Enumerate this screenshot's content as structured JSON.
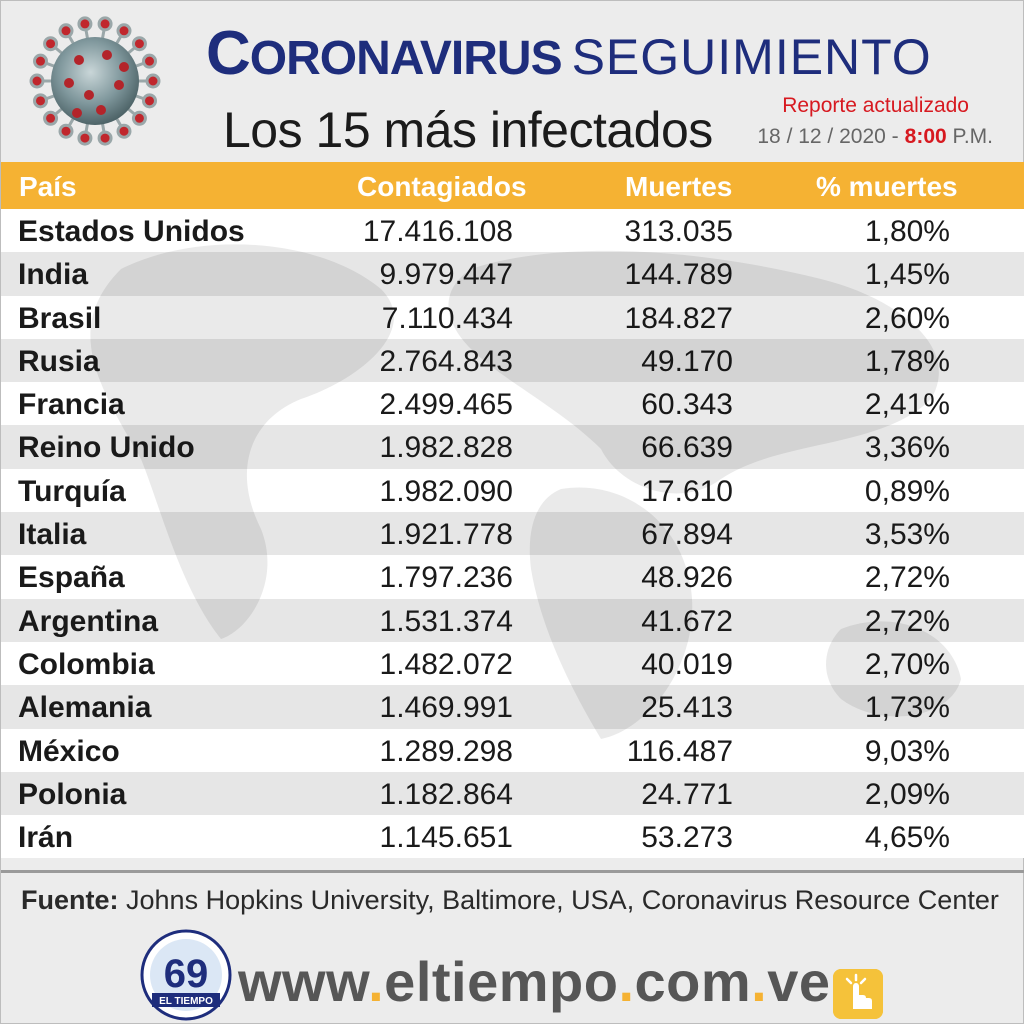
{
  "header": {
    "title_word1": "Coronavirus",
    "title_word2": "SEGUIMIENTO",
    "subtitle": "Los 15 más infectados",
    "report_label": "Reporte actualizado",
    "date": "18 / 12 / 2020 -",
    "time": "8:00",
    "ampm": "P.M."
  },
  "colors": {
    "accent_orange": "#f5b233",
    "title_blue": "#1e2d7c",
    "alert_red": "#d71920"
  },
  "chart_data": {
    "type": "table",
    "columns": [
      "País",
      "Contagiados",
      "Muertes",
      "% muertes"
    ],
    "rows": [
      [
        "Estados Unidos",
        "17.416.108",
        "313.035",
        "1,80%"
      ],
      [
        "India",
        "9.979.447",
        "144.789",
        "1,45%"
      ],
      [
        "Brasil",
        "7.110.434",
        "184.827",
        "2,60%"
      ],
      [
        "Rusia",
        "2.764.843",
        "49.170",
        "1,78%"
      ],
      [
        "Francia",
        "2.499.465",
        "60.343",
        "2,41%"
      ],
      [
        "Reino Unido",
        "1.982.828",
        "66.639",
        "3,36%"
      ],
      [
        "Turquía",
        "1.982.090",
        "17.610",
        "0,89%"
      ],
      [
        "Italia",
        "1.921.778",
        "67.894",
        "3,53%"
      ],
      [
        "España",
        "1.797.236",
        "48.926",
        "2,72%"
      ],
      [
        "Argentina",
        "1.531.374",
        "41.672",
        "2,72%"
      ],
      [
        "Colombia",
        "1.482.072",
        "40.019",
        "2,70%"
      ],
      [
        "Alemania",
        "1.469.991",
        "25.413",
        "1,73%"
      ],
      [
        "México",
        "1.289.298",
        "116.487",
        "9,03%"
      ],
      [
        "Polonia",
        "1.182.864",
        "24.771",
        "2,09%"
      ],
      [
        "Irán",
        "1.145.651",
        "53.273",
        "4,65%"
      ]
    ]
  },
  "source": {
    "label": "Fuente:",
    "text": "Johns Hopkins University, Baltimore, USA, Coronavirus Resource Center"
  },
  "footer": {
    "logo_number": "69",
    "logo_name": "EL TIEMPO",
    "url_parts": [
      "www",
      "eltiempo",
      "com",
      "ve"
    ]
  },
  "icons": {
    "virus": "coronavirus-icon",
    "hand": "hand-pointer-icon"
  }
}
